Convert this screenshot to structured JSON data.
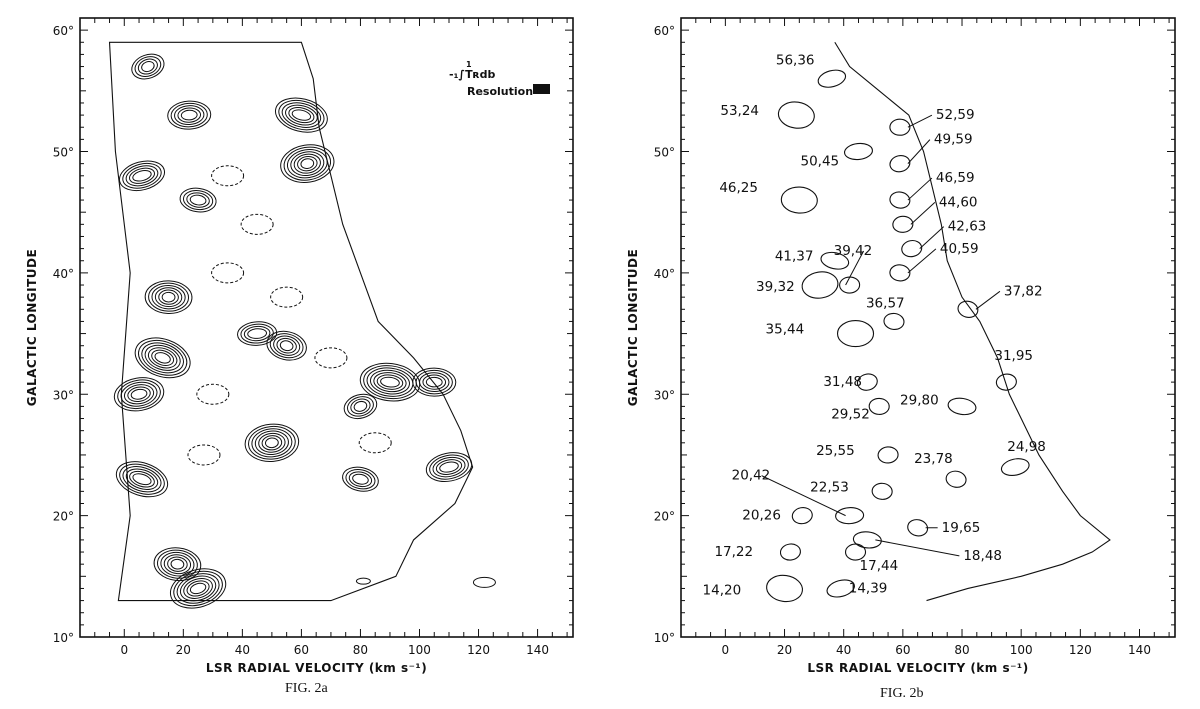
{
  "figure_a": {
    "caption": "FIG. 2a",
    "legend_label": "-1 ∫ 1 T_R db",
    "legend_resolution": "Resolution"
  },
  "figure_b": {
    "caption": "FIG. 2b"
  },
  "chart_data": [
    {
      "type": "contour",
      "panel": "a",
      "xlabel": "LSR RADIAL VELOCITY (km s⁻¹)",
      "ylabel": "GALACTIC LONGITUDE",
      "xlim": [
        -15,
        152
      ],
      "ylim": [
        10,
        61
      ],
      "xticks": [
        0,
        20,
        40,
        60,
        80,
        100,
        120,
        140
      ],
      "yticks": [
        10,
        20,
        30,
        40,
        50,
        60
      ],
      "ytick_labels": [
        "10°",
        "20°",
        "30°",
        "40°",
        "50°",
        "60°"
      ],
      "peaks": [
        {
          "v": 8,
          "l": 57
        },
        {
          "v": 22,
          "l": 53
        },
        {
          "v": 60,
          "l": 53
        },
        {
          "v": 62,
          "l": 49
        },
        {
          "v": 25,
          "l": 46
        },
        {
          "v": 6,
          "l": 48
        },
        {
          "v": 15,
          "l": 38
        },
        {
          "v": 13,
          "l": 33
        },
        {
          "v": 45,
          "l": 35
        },
        {
          "v": 55,
          "l": 34
        },
        {
          "v": 5,
          "l": 30
        },
        {
          "v": 90,
          "l": 31
        },
        {
          "v": 80,
          "l": 29
        },
        {
          "v": 105,
          "l": 31
        },
        {
          "v": 6,
          "l": 23
        },
        {
          "v": 50,
          "l": 26
        },
        {
          "v": 80,
          "l": 23
        },
        {
          "v": 110,
          "l": 24
        },
        {
          "v": 18,
          "l": 16
        },
        {
          "v": 25,
          "l": 14
        }
      ]
    },
    {
      "type": "scatter",
      "panel": "b",
      "xlabel": "LSR RADIAL VELOCITY (km s⁻¹)",
      "ylabel": "GALACTIC LONGITUDE",
      "xlim": [
        -15,
        152
      ],
      "ylim": [
        10,
        61
      ],
      "xticks": [
        0,
        20,
        40,
        60,
        80,
        100,
        120,
        140
      ],
      "yticks": [
        10,
        20,
        30,
        40,
        50,
        60
      ],
      "ytick_labels": [
        "10°",
        "20°",
        "30°",
        "40°",
        "50°",
        "60°"
      ],
      "clouds": [
        {
          "label": "56,36",
          "l": 56,
          "v": 36
        },
        {
          "label": "53,24",
          "l": 53,
          "v": 24
        },
        {
          "label": "52,59",
          "l": 52,
          "v": 59
        },
        {
          "label": "50,45",
          "l": 50,
          "v": 45
        },
        {
          "label": "49,59",
          "l": 49,
          "v": 59
        },
        {
          "label": "46,59",
          "l": 46,
          "v": 59
        },
        {
          "label": "46,25",
          "l": 46,
          "v": 25
        },
        {
          "label": "44,60",
          "l": 44,
          "v": 60
        },
        {
          "label": "42,63",
          "l": 42,
          "v": 63
        },
        {
          "label": "41,37",
          "l": 41,
          "v": 37
        },
        {
          "label": "40,59",
          "l": 40,
          "v": 59
        },
        {
          "label": "39,42",
          "l": 39,
          "v": 42
        },
        {
          "label": "39,32",
          "l": 39,
          "v": 32
        },
        {
          "label": "37,82",
          "l": 37,
          "v": 82
        },
        {
          "label": "36,57",
          "l": 36,
          "v": 57
        },
        {
          "label": "35,44",
          "l": 35,
          "v": 44
        },
        {
          "label": "31,95",
          "l": 31,
          "v": 95
        },
        {
          "label": "31,48",
          "l": 31,
          "v": 48
        },
        {
          "label": "29,80",
          "l": 29,
          "v": 80
        },
        {
          "label": "29,52",
          "l": 29,
          "v": 52
        },
        {
          "label": "25,55",
          "l": 25,
          "v": 55
        },
        {
          "label": "24,98",
          "l": 24,
          "v": 98
        },
        {
          "label": "23,78",
          "l": 23,
          "v": 78
        },
        {
          "label": "22,53",
          "l": 22,
          "v": 53
        },
        {
          "label": "20,42",
          "l": 20,
          "v": 42
        },
        {
          "label": "20,26",
          "l": 20,
          "v": 26
        },
        {
          "label": "19,65",
          "l": 19,
          "v": 65
        },
        {
          "label": "18,48",
          "l": 18,
          "v": 48
        },
        {
          "label": "17,44",
          "l": 17,
          "v": 44
        },
        {
          "label": "17,22",
          "l": 17,
          "v": 22
        },
        {
          "label": "14,39",
          "l": 14,
          "v": 39
        },
        {
          "label": "14,20",
          "l": 14,
          "v": 20
        }
      ]
    }
  ]
}
